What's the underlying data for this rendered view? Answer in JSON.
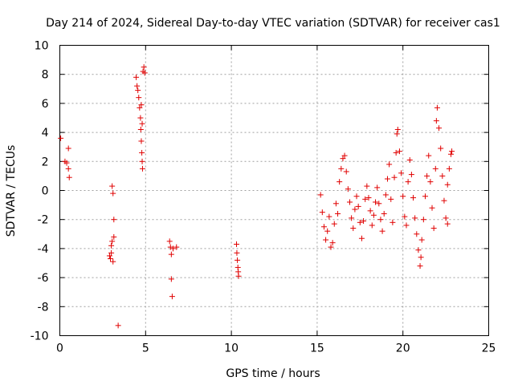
{
  "chart_data": {
    "type": "scatter",
    "title": "Day 214 of 2024, Sidereal Day-to-day VTEC variation (SDTVAR) for receiver cas1",
    "xlabel": "GPS time / hours",
    "ylabel": "SDTVAR / TECUs",
    "xlim": [
      0,
      25
    ],
    "ylim": [
      -10,
      10
    ],
    "xticks": [
      0,
      5,
      10,
      15,
      20,
      25
    ],
    "yticks": [
      -10,
      -8,
      -6,
      -4,
      -2,
      0,
      2,
      4,
      6,
      8,
      10
    ],
    "grid": true,
    "marker": "+",
    "marker_color": "#e00000",
    "series": [
      {
        "name": "SDTVAR",
        "points": [
          [
            0.05,
            3.6
          ],
          [
            0.3,
            2.0
          ],
          [
            0.4,
            1.9
          ],
          [
            0.5,
            2.9
          ],
          [
            0.5,
            1.5
          ],
          [
            0.55,
            0.9
          ],
          [
            2.9,
            -4.5
          ],
          [
            2.95,
            -4.7
          ],
          [
            3.0,
            -4.3
          ],
          [
            3.0,
            -3.8
          ],
          [
            3.05,
            -3.5
          ],
          [
            3.05,
            0.3
          ],
          [
            3.1,
            -0.2
          ],
          [
            3.1,
            -4.9
          ],
          [
            3.15,
            -2.0
          ],
          [
            3.15,
            -3.2
          ],
          [
            3.4,
            -9.3
          ],
          [
            4.45,
            7.8
          ],
          [
            4.5,
            7.2
          ],
          [
            4.55,
            6.9
          ],
          [
            4.6,
            6.4
          ],
          [
            4.65,
            5.7
          ],
          [
            4.7,
            5.0
          ],
          [
            4.72,
            4.2
          ],
          [
            4.75,
            3.4
          ],
          [
            4.78,
            2.6
          ],
          [
            4.8,
            2.0
          ],
          [
            4.82,
            1.5
          ],
          [
            4.85,
            8.2
          ],
          [
            4.9,
            8.5
          ],
          [
            4.95,
            8.1
          ],
          [
            4.75,
            5.9
          ],
          [
            4.8,
            4.6
          ],
          [
            6.4,
            -3.5
          ],
          [
            6.45,
            -3.9
          ],
          [
            6.5,
            -4.4
          ],
          [
            6.5,
            -6.1
          ],
          [
            6.55,
            -7.3
          ],
          [
            6.6,
            -4.0
          ],
          [
            6.8,
            -3.9
          ],
          [
            10.3,
            -3.7
          ],
          [
            10.32,
            -4.3
          ],
          [
            10.35,
            -4.8
          ],
          [
            10.38,
            -5.3
          ],
          [
            10.4,
            -5.6
          ],
          [
            10.42,
            -5.9
          ],
          [
            15.2,
            -0.3
          ],
          [
            15.3,
            -1.5
          ],
          [
            15.4,
            -2.5
          ],
          [
            15.5,
            -3.4
          ],
          [
            15.6,
            -2.8
          ],
          [
            15.7,
            -1.8
          ],
          [
            15.8,
            -3.9
          ],
          [
            15.9,
            -3.6
          ],
          [
            16.0,
            -2.3
          ],
          [
            16.1,
            -0.9
          ],
          [
            16.2,
            -1.6
          ],
          [
            16.3,
            0.6
          ],
          [
            16.4,
            1.5
          ],
          [
            16.5,
            2.2
          ],
          [
            16.6,
            2.4
          ],
          [
            16.7,
            1.3
          ],
          [
            16.8,
            0.1
          ],
          [
            16.9,
            -0.8
          ],
          [
            17.0,
            -1.9
          ],
          [
            17.1,
            -2.6
          ],
          [
            17.2,
            -1.3
          ],
          [
            17.3,
            -0.4
          ],
          [
            17.4,
            -1.1
          ],
          [
            17.5,
            -2.2
          ],
          [
            17.6,
            -3.3
          ],
          [
            17.7,
            -2.1
          ],
          [
            17.8,
            -0.6
          ],
          [
            17.9,
            0.3
          ],
          [
            18.0,
            -0.5
          ],
          [
            18.1,
            -1.4
          ],
          [
            18.2,
            -2.4
          ],
          [
            18.3,
            -1.7
          ],
          [
            18.4,
            -0.8
          ],
          [
            18.5,
            0.2
          ],
          [
            18.6,
            -0.9
          ],
          [
            18.7,
            -2.0
          ],
          [
            18.8,
            -2.8
          ],
          [
            18.9,
            -1.6
          ],
          [
            19.0,
            -0.3
          ],
          [
            19.1,
            0.8
          ],
          [
            19.2,
            1.8
          ],
          [
            19.3,
            -0.6
          ],
          [
            19.4,
            -2.2
          ],
          [
            19.5,
            0.9
          ],
          [
            19.6,
            2.6
          ],
          [
            19.65,
            3.9
          ],
          [
            19.7,
            4.2
          ],
          [
            19.8,
            2.7
          ],
          [
            19.9,
            1.2
          ],
          [
            20.0,
            -0.4
          ],
          [
            20.1,
            -1.8
          ],
          [
            20.2,
            -2.4
          ],
          [
            20.3,
            0.6
          ],
          [
            20.4,
            2.1
          ],
          [
            20.5,
            1.1
          ],
          [
            20.6,
            -0.5
          ],
          [
            20.7,
            -1.9
          ],
          [
            20.8,
            -3.0
          ],
          [
            20.9,
            -4.1
          ],
          [
            21.0,
            -5.2
          ],
          [
            21.05,
            -4.6
          ],
          [
            21.1,
            -3.4
          ],
          [
            21.2,
            -2.0
          ],
          [
            21.3,
            -0.4
          ],
          [
            21.4,
            1.0
          ],
          [
            21.5,
            2.4
          ],
          [
            21.6,
            0.6
          ],
          [
            21.7,
            -1.2
          ],
          [
            21.8,
            -2.6
          ],
          [
            21.9,
            1.5
          ],
          [
            21.95,
            4.8
          ],
          [
            22.0,
            5.7
          ],
          [
            22.1,
            4.3
          ],
          [
            22.2,
            2.9
          ],
          [
            22.3,
            1.0
          ],
          [
            22.4,
            -0.7
          ],
          [
            22.5,
            -1.9
          ],
          [
            22.6,
            0.4
          ],
          [
            22.7,
            1.5
          ],
          [
            22.8,
            2.5
          ],
          [
            22.85,
            2.7
          ],
          [
            22.6,
            -2.3
          ]
        ]
      }
    ]
  }
}
